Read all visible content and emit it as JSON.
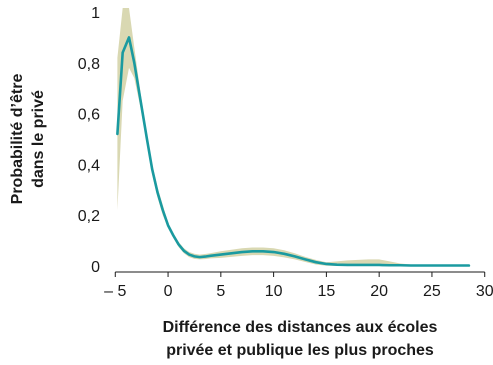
{
  "chart_data": {
    "type": "line",
    "title": "",
    "ylabel_lines": [
      "Probabilité d’être",
      "dans le privé"
    ],
    "xlabel_lines": [
      "Différence des distances aux écoles",
      "privée et publique les plus proches"
    ],
    "xlim": [
      -5.5,
      30.5
    ],
    "ylim": [
      0,
      1
    ],
    "x_ticks": [
      -5,
      0,
      5,
      10,
      15,
      20,
      25,
      30
    ],
    "x_tick_labels": [
      "– 5",
      "0",
      "5",
      "10",
      "15",
      "20",
      "25",
      "30"
    ],
    "y_ticks": [
      0,
      0.2,
      0.4,
      0.6,
      0.8,
      1
    ],
    "y_tick_labels": [
      "0",
      "0,2",
      "0,4",
      "0,6",
      "0,8",
      "1"
    ],
    "grid": false,
    "colors": {
      "line": "#1a9aa0",
      "band": "#d9d8b2",
      "axis": "#1a1a1a"
    },
    "series": [
      {
        "x": [
          -4.8,
          -4.3,
          -3.7,
          -3.2,
          -2.6,
          -2,
          -1.5,
          -1,
          -0.5,
          0,
          0.5,
          1,
          1.5,
          2,
          2.5,
          3,
          3.5,
          4,
          5,
          6,
          7,
          8,
          9,
          10,
          11,
          12,
          13,
          14,
          15,
          16,
          17,
          18,
          19,
          20,
          21,
          22,
          23,
          24,
          25,
          26,
          27,
          28,
          28.5
        ],
        "y": [
          0.52,
          0.84,
          0.9,
          0.8,
          0.65,
          0.5,
          0.38,
          0.29,
          0.22,
          0.16,
          0.12,
          0.085,
          0.06,
          0.045,
          0.038,
          0.035,
          0.037,
          0.04,
          0.045,
          0.05,
          0.055,
          0.058,
          0.058,
          0.055,
          0.048,
          0.038,
          0.026,
          0.015,
          0.008,
          0.005,
          0.004,
          0.004,
          0.004,
          0.004,
          0.003,
          0.003,
          0.002,
          0.002,
          0.002,
          0.002,
          0.002,
          0.002,
          0.002
        ],
        "lower": [
          0.22,
          0.65,
          0.78,
          0.74,
          0.62,
          0.48,
          0.36,
          0.27,
          0.2,
          0.15,
          0.11,
          0.075,
          0.05,
          0.035,
          0.028,
          0.026,
          0.027,
          0.03,
          0.032,
          0.036,
          0.04,
          0.043,
          0.043,
          0.04,
          0.034,
          0.026,
          0.016,
          0.006,
          0.001,
          -0.008,
          -0.012,
          -0.014,
          -0.014,
          -0.012,
          -0.008,
          -0.004,
          -0.002,
          0.0,
          0.0,
          0.001,
          0.001,
          0.001,
          0.001
        ],
        "upper": [
          0.82,
          1.02,
          1.02,
          0.86,
          0.68,
          0.52,
          0.4,
          0.31,
          0.24,
          0.17,
          0.13,
          0.095,
          0.07,
          0.055,
          0.048,
          0.045,
          0.047,
          0.05,
          0.058,
          0.064,
          0.07,
          0.073,
          0.073,
          0.07,
          0.062,
          0.05,
          0.036,
          0.024,
          0.015,
          0.018,
          0.022,
          0.024,
          0.026,
          0.026,
          0.018,
          0.01,
          0.006,
          0.004,
          0.003,
          0.003,
          0.003,
          0.003,
          0.003
        ]
      }
    ]
  }
}
